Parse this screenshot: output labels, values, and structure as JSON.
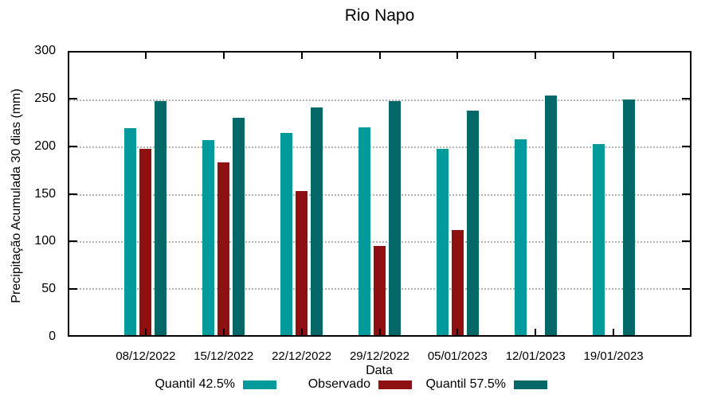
{
  "title": "Rio Napo",
  "chart_data": {
    "type": "bar",
    "title": "Rio Napo",
    "xlabel": "Data",
    "ylabel": "Precipitação Acumulada 30 dias (mm)",
    "ylim": [
      0,
      300
    ],
    "y_ticks": [
      0,
      50,
      100,
      150,
      200,
      250,
      300
    ],
    "grid": true,
    "legend_position": "bottom",
    "categories": [
      "08/12/2022",
      "15/12/2022",
      "22/12/2022",
      "29/12/2022",
      "05/01/2023",
      "12/01/2023",
      "19/01/2023"
    ],
    "series": [
      {
        "name": "Quantil 42.5%",
        "color": "#029A9A",
        "values": [
          219,
          206,
          214,
          220,
          197,
          207,
          202
        ]
      },
      {
        "name": "Observado",
        "color": "#8F1011",
        "values": [
          197,
          183,
          153,
          95,
          112,
          null,
          null
        ]
      },
      {
        "name": "Quantil 57.5%",
        "color": "#056868",
        "values": [
          247,
          230,
          241,
          247,
          237,
          253,
          249
        ]
      }
    ],
    "colors": {
      "grid": "#b3b3b3",
      "border": "#000000",
      "background": "#ffffff"
    }
  }
}
